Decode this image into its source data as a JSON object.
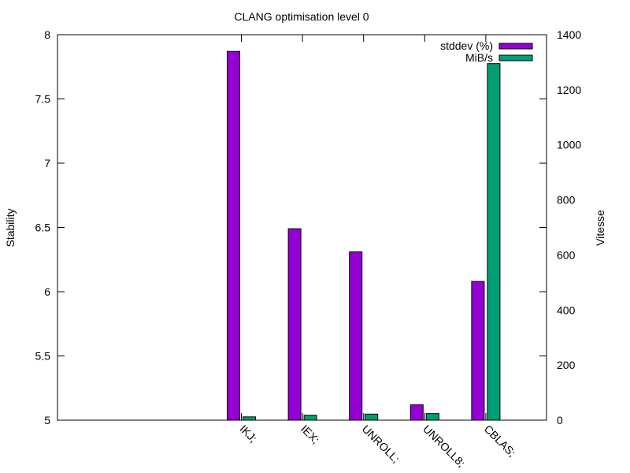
{
  "chart_data": {
    "type": "bar",
    "title": "CLANG optimisation level 0",
    "categories": [
      "IKJ;",
      "IEX;",
      "UNROLL;",
      "UNROLL8;",
      "CBLAS;"
    ],
    "ylabel": "Stability",
    "y2label": "Vitesse",
    "ylim": [
      5,
      8
    ],
    "y2lim": [
      0,
      1400
    ],
    "yticks": [
      "5",
      "5.5",
      "6",
      "6.5",
      "7",
      "7.5",
      "8"
    ],
    "y2ticks": [
      "0",
      "200",
      "400",
      "600",
      "800",
      "1000",
      "1200",
      "1400"
    ],
    "legend_position": "top-right",
    "grid": false,
    "series": [
      {
        "name": "stddev (%)",
        "axis": "y",
        "color": "#9400d3",
        "values": [
          7.87,
          6.49,
          6.31,
          5.12,
          6.08
        ]
      },
      {
        "name": "MiB/s",
        "axis": "y2",
        "color": "#009e73",
        "values": [
          12,
          18,
          22,
          24,
          1295
        ]
      }
    ]
  }
}
